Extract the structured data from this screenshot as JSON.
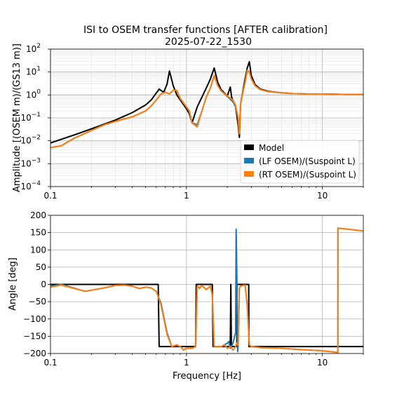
{
  "figure": {
    "title_line1": "ISI to OSEM transfer functions [AFTER calibration]",
    "title_line2": "2025-07-22_1530"
  },
  "colors": {
    "model": "#000000",
    "lf": "#1f77b4",
    "rt": "#ff7f0e",
    "grid_major": "#b0b0b0",
    "grid_minor": "#dcdcdc"
  },
  "chart_data": [
    {
      "type": "line",
      "panel": "amplitude",
      "xscale": "log",
      "yscale": "log",
      "xlim": [
        0.1,
        20
      ],
      "ylim": [
        0.0001,
        100
      ],
      "xlabel": "",
      "ylabel": "Amplitude [(OSEM m)/(GS13 m)]",
      "x_ticks": [
        "0.1",
        "1",
        "10"
      ],
      "y_ticks": [
        "10^-4",
        "10^-3",
        "10^-2",
        "10^-1",
        "10^0",
        "10^1",
        "10^2"
      ],
      "grid": "major+minor",
      "legend": "lower-right",
      "series": [
        {
          "name": "Model",
          "color_key": "model",
          "x": [
            0.1,
            0.15,
            0.2,
            0.3,
            0.4,
            0.5,
            0.55,
            0.6,
            0.63,
            0.68,
            0.72,
            0.75,
            0.8,
            0.85,
            0.9,
            1.0,
            1.05,
            1.1,
            1.2,
            1.3,
            1.4,
            1.5,
            1.6,
            1.7,
            1.8,
            2.0,
            2.1,
            2.15,
            2.3,
            2.4,
            2.45,
            2.5,
            2.6,
            2.7,
            2.8,
            2.9,
            3.0,
            3.2,
            3.5,
            4.0,
            5.0,
            6.0,
            8.0,
            10.0,
            15.0,
            20.0
          ],
          "y": [
            0.008,
            0.018,
            0.033,
            0.08,
            0.17,
            0.36,
            0.6,
            1.2,
            1.8,
            1.3,
            3.0,
            11.0,
            2.5,
            1.0,
            0.6,
            0.25,
            0.15,
            0.06,
            0.3,
            0.8,
            2.0,
            5.0,
            15.0,
            3.5,
            1.7,
            0.9,
            2.2,
            0.8,
            0.3,
            0.05,
            0.014,
            0.4,
            1.5,
            5.0,
            15.0,
            28.0,
            7.0,
            2.8,
            1.8,
            1.45,
            1.25,
            1.15,
            1.1,
            1.1,
            1.05,
            1.05
          ]
        },
        {
          "name": "(LF OSEM)/(Suspoint L)",
          "color_key": "lf",
          "x": [
            0.1,
            0.12,
            0.15,
            0.2,
            0.25,
            0.3,
            0.35,
            0.4,
            0.5,
            0.55,
            0.6,
            0.65,
            0.7,
            0.75,
            0.8,
            0.85,
            0.9,
            1.0,
            1.05,
            1.1,
            1.2,
            1.3,
            1.4,
            1.5,
            1.6,
            1.7,
            1.8,
            2.0,
            2.2,
            2.3,
            2.4,
            2.45,
            2.5,
            2.6,
            2.7,
            2.8,
            2.9,
            3.0,
            3.2,
            3.5,
            4.0,
            5.0,
            6.0,
            8.0,
            10.0,
            15.0,
            20.0
          ],
          "y": [
            0.005,
            0.006,
            0.013,
            0.028,
            0.05,
            0.07,
            0.09,
            0.11,
            0.2,
            0.33,
            0.6,
            1.1,
            1.3,
            1.1,
            1.6,
            1.6,
            0.7,
            0.3,
            0.2,
            0.06,
            0.05,
            0.2,
            0.8,
            2.0,
            7.0,
            2.5,
            1.5,
            0.85,
            0.5,
            0.3,
            0.1,
            0.03,
            0.4,
            1.3,
            3.5,
            11.0,
            10.0,
            5.0,
            2.5,
            1.7,
            1.4,
            1.25,
            1.15,
            1.1,
            1.1,
            1.05,
            1.05
          ]
        },
        {
          "name": "(RT OSEM)/(Suspoint L)",
          "color_key": "rt",
          "x": [
            0.1,
            0.12,
            0.15,
            0.2,
            0.25,
            0.3,
            0.35,
            0.4,
            0.5,
            0.55,
            0.6,
            0.65,
            0.7,
            0.75,
            0.8,
            0.85,
            0.9,
            1.0,
            1.05,
            1.1,
            1.2,
            1.3,
            1.4,
            1.5,
            1.6,
            1.7,
            1.8,
            2.0,
            2.2,
            2.3,
            2.4,
            2.45,
            2.5,
            2.6,
            2.7,
            2.8,
            2.9,
            3.0,
            3.2,
            3.5,
            4.0,
            5.0,
            6.0,
            8.0,
            10.0,
            15.0,
            20.0
          ],
          "y": [
            0.005,
            0.006,
            0.013,
            0.028,
            0.05,
            0.07,
            0.09,
            0.11,
            0.2,
            0.33,
            0.6,
            1.1,
            1.3,
            1.1,
            1.6,
            1.6,
            0.7,
            0.3,
            0.2,
            0.06,
            0.04,
            0.2,
            0.8,
            2.0,
            7.0,
            2.5,
            1.5,
            0.9,
            0.6,
            0.35,
            0.1,
            0.02,
            0.4,
            1.3,
            3.5,
            12.0,
            10.0,
            5.0,
            2.5,
            1.7,
            1.4,
            1.25,
            1.15,
            1.1,
            1.1,
            1.05,
            1.05
          ]
        }
      ]
    },
    {
      "type": "line",
      "panel": "phase",
      "xscale": "log",
      "yscale": "linear",
      "xlim": [
        0.1,
        20
      ],
      "ylim": [
        -200,
        200
      ],
      "xlabel": "Frequency [Hz]",
      "ylabel": "Angle [deg]",
      "x_ticks": [
        "0.1",
        "1",
        "10"
      ],
      "y_ticks": [
        "200",
        "150",
        "100",
        "50",
        "0",
        "−50",
        "−100",
        "−150",
        "−200"
      ],
      "grid": "major",
      "series": [
        {
          "name": "Model",
          "color_key": "model",
          "x": [
            0.1,
            0.62,
            0.63,
            0.68,
            0.85,
            1.17,
            1.18,
            1.55,
            1.57,
            2.1,
            2.12,
            2.14,
            2.16,
            2.35,
            2.36,
            2.5,
            2.51,
            2.87,
            2.88,
            20.0
          ],
          "y": [
            0,
            0,
            -180,
            -180,
            -180,
            -180,
            0,
            0,
            -180,
            -180,
            0,
            -180,
            -180,
            -180,
            0,
            0,
            0,
            0,
            -180,
            -180
          ]
        },
        {
          "name": "(LF OSEM)/(Suspoint L)",
          "color_key": "lf",
          "x": [
            0.1,
            0.12,
            0.18,
            0.25,
            0.3,
            0.35,
            0.4,
            0.45,
            0.5,
            0.55,
            0.6,
            0.65,
            0.72,
            0.78,
            0.85,
            0.9,
            0.95,
            1.0,
            1.1,
            1.17,
            1.2,
            1.25,
            1.3,
            1.4,
            1.5,
            1.55,
            1.6,
            1.65,
            1.8,
            1.9,
            2.0,
            2.05,
            2.1,
            2.2,
            2.3,
            2.32,
            2.35,
            2.38,
            2.4,
            2.45,
            2.5,
            2.6,
            2.7,
            2.8,
            2.9,
            3.0,
            3.5,
            5.0,
            8.0,
            10.0,
            13.0,
            13.01,
            20.0
          ],
          "y": [
            -5,
            0,
            -20,
            -10,
            -3,
            -2,
            -5,
            -12,
            -8,
            -10,
            -20,
            -55,
            -140,
            -180,
            -175,
            -180,
            -190,
            -185,
            -185,
            -180,
            -5,
            -10,
            -3,
            -15,
            -5,
            -30,
            -180,
            -180,
            -180,
            -175,
            -170,
            -165,
            -185,
            -170,
            -140,
            160,
            30,
            -195,
            -180,
            -10,
            -5,
            -3,
            -2,
            -60,
            -175,
            -180,
            -183,
            -185,
            -190,
            -192,
            -197,
            163,
            155
          ]
        },
        {
          "name": "(RT OSEM)/(Suspoint L)",
          "color_key": "rt",
          "x": [
            0.1,
            0.12,
            0.18,
            0.25,
            0.3,
            0.35,
            0.4,
            0.45,
            0.5,
            0.55,
            0.6,
            0.65,
            0.72,
            0.78,
            0.85,
            0.9,
            0.95,
            1.0,
            1.1,
            1.17,
            1.2,
            1.25,
            1.3,
            1.4,
            1.5,
            1.55,
            1.6,
            1.65,
            1.8,
            1.9,
            2.0,
            2.1,
            2.2,
            2.3,
            2.35,
            2.4,
            2.45,
            2.5,
            2.6,
            2.7,
            2.8,
            2.9,
            3.0,
            3.5,
            5.0,
            8.0,
            10.0,
            13.0,
            13.01,
            20.0
          ],
          "y": [
            -8,
            -2,
            -20,
            -10,
            -3,
            -2,
            -5,
            -12,
            -8,
            -10,
            -20,
            -60,
            -145,
            -180,
            -175,
            -180,
            -190,
            -185,
            -185,
            -180,
            -5,
            -12,
            -3,
            -15,
            -5,
            -30,
            -180,
            -180,
            -180,
            -175,
            -185,
            -180,
            -190,
            -180,
            -170,
            -175,
            -10,
            -5,
            -3,
            -2,
            -60,
            -175,
            -180,
            -183,
            -185,
            -190,
            -192,
            -197,
            163,
            155
          ]
        }
      ]
    }
  ]
}
